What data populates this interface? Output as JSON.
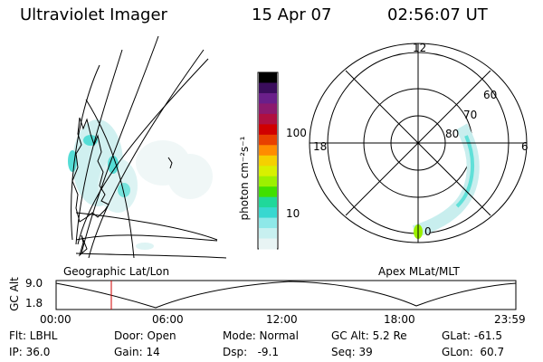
{
  "header": {
    "title": "Ultraviolet Imager",
    "date": "15 Apr 07",
    "time": "02:56:07 UT"
  },
  "colorbar": {
    "unit_label": "photon cm⁻²s⁻¹",
    "ticks": [
      "100",
      "10"
    ],
    "colors": [
      "#000000",
      "#3a0d5c",
      "#6a1f8a",
      "#8c1a6e",
      "#b01040",
      "#d00000",
      "#e84000",
      "#ff8c00",
      "#f5d000",
      "#d8f000",
      "#9cf000",
      "#40e000",
      "#20d89a",
      "#38d8d0",
      "#8ee8e8",
      "#c8f0f0",
      "#e8f4f4"
    ]
  },
  "left_panel": {
    "label": "Geographic Lat/Lon"
  },
  "right_panel": {
    "label": "Apex MLat/MLT",
    "mlt_labels": {
      "top": "12",
      "left": "18",
      "right": "6",
      "bottom": "0"
    },
    "lat_labels": [
      "60",
      "70",
      "80"
    ]
  },
  "timeline": {
    "ylabel": "GC Alt",
    "y_ticks": [
      "9.0",
      "1.8"
    ],
    "x_ticks": [
      "00:00",
      "06:00",
      "12:00",
      "18:00",
      "23:59"
    ],
    "marker_color": "#d00000"
  },
  "footer": {
    "row1": [
      "Flt: LBHL",
      "Door: Open",
      "Mode: Normal",
      "GC Alt: 5.2 Re",
      "GLat: -61.5"
    ],
    "row2": [
      "IP: 36.0",
      "Gain: 14",
      "Dsp:   -9.1",
      "Seq: 39",
      "GLon:  60.7"
    ]
  }
}
